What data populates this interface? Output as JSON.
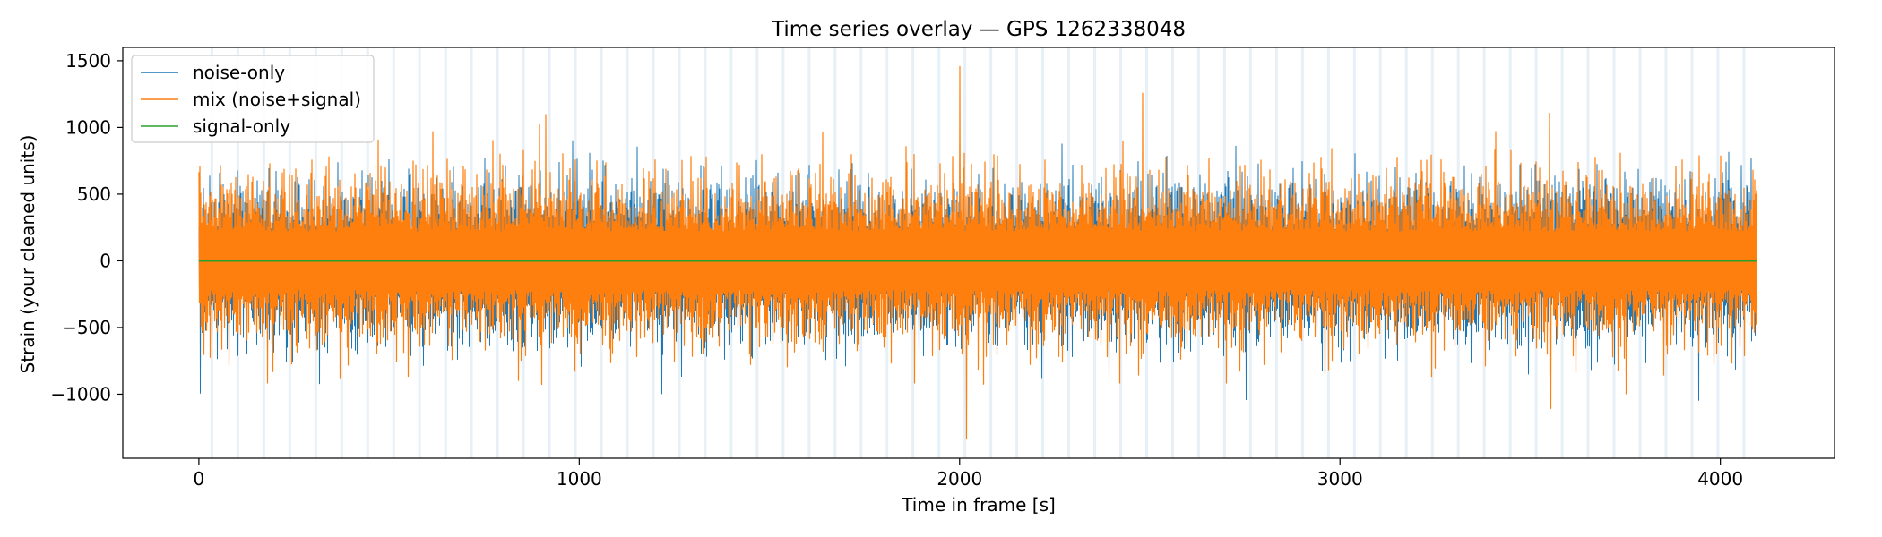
{
  "chart_data": {
    "type": "line",
    "title": "Time series overlay — GPS 1262338048",
    "xlabel": "Time in frame [s]",
    "ylabel": "Strain (your cleaned units)",
    "xlim": [
      -200,
      4300
    ],
    "ylim": [
      -1480,
      1600
    ],
    "x_ticks": [
      0,
      1000,
      2000,
      3000,
      4000
    ],
    "y_ticks": [
      -1000,
      -500,
      0,
      500,
      1000,
      1500
    ],
    "x_tick_labels": [
      "0",
      "1000",
      "2000",
      "3000",
      "4000"
    ],
    "y_tick_labels": [
      "−1000",
      "−500",
      "0",
      "500",
      "1000",
      "1500"
    ],
    "grid": false,
    "legend_position": "top-left",
    "series": [
      {
        "name": "noise-only",
        "color": "#1f77b4",
        "x_range": [
          0,
          4096
        ],
        "typical_abs_amplitude": 400,
        "peaks": [
          [
            3,
            700
          ],
          [
            8,
            -540
          ],
          [
            131,
            640
          ],
          [
            180,
            -700
          ],
          [
            295,
            650
          ],
          [
            330,
            -650
          ],
          [
            450,
            650
          ],
          [
            470,
            -640
          ],
          [
            600,
            700
          ],
          [
            656,
            -640
          ],
          [
            800,
            700
          ],
          [
            850,
            -650
          ],
          [
            990,
            740
          ],
          [
            1020,
            -600
          ],
          [
            1070,
            710
          ],
          [
            1150,
            -720
          ],
          [
            1220,
            690
          ],
          [
            1320,
            -700
          ],
          [
            1420,
            700
          ],
          [
            1500,
            -600
          ],
          [
            1560,
            620
          ],
          [
            1640,
            -680
          ],
          [
            1760,
            660
          ],
          [
            1800,
            -650
          ],
          [
            1960,
            620
          ],
          [
            2100,
            -640
          ],
          [
            2320,
            640
          ],
          [
            2450,
            -610
          ],
          [
            2600,
            610
          ],
          [
            2780,
            -640
          ],
          [
            2920,
            640
          ],
          [
            3050,
            -650
          ],
          [
            3200,
            660
          ],
          [
            3380,
            -650
          ],
          [
            3450,
            640
          ],
          [
            3650,
            -640
          ],
          [
            3700,
            620
          ],
          [
            3850,
            -680
          ],
          [
            4000,
            640
          ],
          [
            4090,
            -560
          ]
        ]
      },
      {
        "name": "mix (noise+signal)",
        "color": "#ff7f0e",
        "x_range": [
          0,
          4096
        ],
        "typical_abs_amplitude": 400,
        "peaks": [
          [
            3,
            710
          ],
          [
            8,
            -530
          ],
          [
            131,
            650
          ],
          [
            180,
            -920
          ],
          [
            295,
            660
          ],
          [
            330,
            -610
          ],
          [
            370,
            -880
          ],
          [
            450,
            660
          ],
          [
            470,
            -610
          ],
          [
            550,
            -870
          ],
          [
            600,
            720
          ],
          [
            656,
            -640
          ],
          [
            800,
            720
          ],
          [
            840,
            -900
          ],
          [
            896,
            1030
          ],
          [
            900,
            -930
          ],
          [
            990,
            760
          ],
          [
            1070,
            740
          ],
          [
            1150,
            -720
          ],
          [
            1200,
            760
          ],
          [
            1250,
            -760
          ],
          [
            1320,
            620
          ],
          [
            1420,
            720
          ],
          [
            1450,
            -780
          ],
          [
            1560,
            640
          ],
          [
            1640,
            -680
          ],
          [
            1715,
            800
          ],
          [
            1800,
            -650
          ],
          [
            1860,
            860
          ],
          [
            1880,
            -920
          ],
          [
            1960,
            660
          ],
          [
            2000,
            1460
          ],
          [
            2018,
            -1340
          ],
          [
            2070,
            -720
          ],
          [
            2100,
            790
          ],
          [
            2200,
            -730
          ],
          [
            2270,
            -760
          ],
          [
            2320,
            720
          ],
          [
            2420,
            -920
          ],
          [
            2470,
            -860
          ],
          [
            2480,
            1260
          ],
          [
            2580,
            -740
          ],
          [
            2600,
            720
          ],
          [
            2700,
            -920
          ],
          [
            2750,
            720
          ],
          [
            2800,
            -780
          ],
          [
            2920,
            660
          ],
          [
            2970,
            -820
          ],
          [
            3050,
            -700
          ],
          [
            3150,
            780
          ],
          [
            3240,
            -870
          ],
          [
            3300,
            -640
          ],
          [
            3380,
            -790
          ],
          [
            3450,
            830
          ],
          [
            3550,
            1110
          ],
          [
            3553,
            -1110
          ],
          [
            3620,
            -840
          ],
          [
            3670,
            780
          ],
          [
            3750,
            -1000
          ],
          [
            3850,
            -860
          ],
          [
            3900,
            760
          ],
          [
            4000,
            790
          ],
          [
            4028,
            -770
          ],
          [
            4095,
            530
          ]
        ]
      },
      {
        "name": "signal-only",
        "color": "#2ca02c",
        "x": [
          0,
          4096
        ],
        "y": [
          0,
          0
        ]
      }
    ],
    "shaded_bands": {
      "color": "#a6c8e0",
      "description_interval_s": [
        0,
        4096
      ],
      "count": 60
    }
  }
}
